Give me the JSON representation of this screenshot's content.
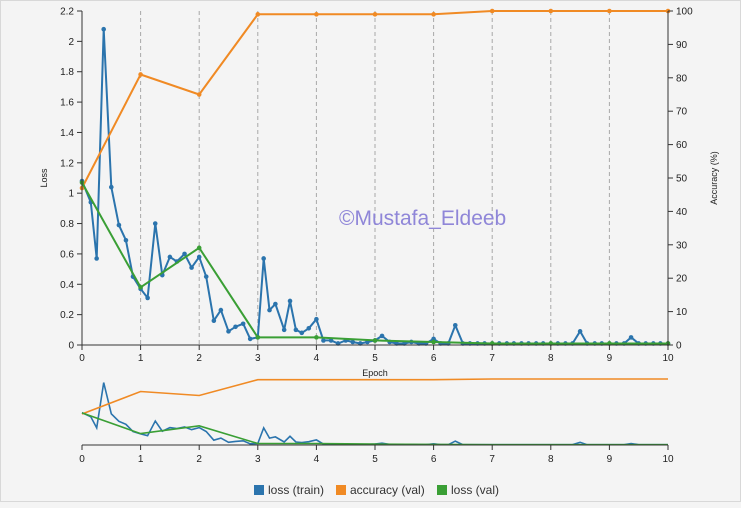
{
  "watermark": "©Mustafa_Eldeeb",
  "chart_data": {
    "type": "line",
    "xlabel": "Epoch",
    "ylabel_left": "Loss",
    "ylabel_right": "Accuracy (%)",
    "xlim": [
      0,
      10
    ],
    "ylim_left": [
      0,
      2.2
    ],
    "ylim_right": [
      0,
      100
    ],
    "x_ticks": [
      "0",
      "1",
      "2",
      "3",
      "4",
      "5",
      "6",
      "7",
      "8",
      "9",
      "10"
    ],
    "y_left_ticks": [
      "0",
      "0.2",
      "0.4",
      "0.6",
      "0.8",
      "1",
      "1.2",
      "1.4",
      "1.6",
      "1.8",
      "2",
      "2.2"
    ],
    "y_right_ticks": [
      "0",
      "10",
      "20",
      "30",
      "40",
      "50",
      "60",
      "70",
      "80",
      "90",
      "100"
    ],
    "grid": "vertical dashed at integer epochs",
    "colors": {
      "loss_train": "#2b74ad",
      "accuracy_val": "#f08a24",
      "loss_val": "#3a9f35"
    },
    "legend": [
      "loss (train)",
      "accuracy (val)",
      "loss (val)"
    ],
    "legend_position": "bottom",
    "series": [
      {
        "name": "loss (train)",
        "axis": "left",
        "x": [
          0,
          0.15,
          0.25,
          0.37,
          0.5,
          0.63,
          0.75,
          0.87,
          1.0,
          1.12,
          1.25,
          1.37,
          1.5,
          1.62,
          1.75,
          1.87,
          2.0,
          2.12,
          2.25,
          2.37,
          2.5,
          2.62,
          2.75,
          2.87,
          3.0,
          3.1,
          3.2,
          3.3,
          3.45,
          3.55,
          3.65,
          3.75,
          3.87,
          4.0,
          4.12,
          4.25,
          4.37,
          4.5,
          4.62,
          4.75,
          4.87,
          5.0,
          5.12,
          5.25,
          5.37,
          5.5,
          5.62,
          5.75,
          5.87,
          6.0,
          6.12,
          6.25,
          6.37,
          6.5,
          6.62,
          6.75,
          6.87,
          7.0,
          7.12,
          7.25,
          7.37,
          7.5,
          7.62,
          7.75,
          7.87,
          8.0,
          8.12,
          8.25,
          8.37,
          8.5,
          8.62,
          8.75,
          8.87,
          9.0,
          9.12,
          9.25,
          9.37,
          9.5,
          9.62,
          9.75,
          9.87,
          10.0
        ],
        "y": [
          1.08,
          0.94,
          0.57,
          2.08,
          1.04,
          0.79,
          0.69,
          0.45,
          0.37,
          0.31,
          0.8,
          0.46,
          0.58,
          0.55,
          0.6,
          0.51,
          0.58,
          0.45,
          0.16,
          0.23,
          0.09,
          0.12,
          0.14,
          0.04,
          0.05,
          0.57,
          0.23,
          0.27,
          0.1,
          0.29,
          0.1,
          0.08,
          0.11,
          0.17,
          0.03,
          0.03,
          0.01,
          0.03,
          0.02,
          0.01,
          0.02,
          0.03,
          0.06,
          0.02,
          0.01,
          0.01,
          0.02,
          0.01,
          0.01,
          0.04,
          0.01,
          0.01,
          0.13,
          0.01,
          0.01,
          0.01,
          0.01,
          0.01,
          0.01,
          0.01,
          0.01,
          0.01,
          0.01,
          0.01,
          0.01,
          0.01,
          0.01,
          0.01,
          0.01,
          0.09,
          0.01,
          0.01,
          0.01,
          0.01,
          0.01,
          0.01,
          0.05,
          0.01,
          0.01,
          0.01,
          0.01,
          0.01
        ]
      },
      {
        "name": "accuracy (val)",
        "axis": "right",
        "x": [
          0,
          1,
          2,
          3,
          4,
          5,
          6,
          7,
          8,
          9,
          10
        ],
        "y": [
          47,
          81,
          75,
          99,
          99,
          99,
          99,
          100,
          100,
          100,
          100
        ]
      },
      {
        "name": "loss (val)",
        "axis": "left",
        "x": [
          0,
          1,
          2,
          3,
          4,
          5,
          6,
          7,
          8,
          9,
          10
        ],
        "y": [
          1.07,
          0.38,
          0.64,
          0.05,
          0.05,
          0.03,
          0.02,
          0.01,
          0.01,
          0.01,
          0.01
        ]
      }
    ]
  }
}
